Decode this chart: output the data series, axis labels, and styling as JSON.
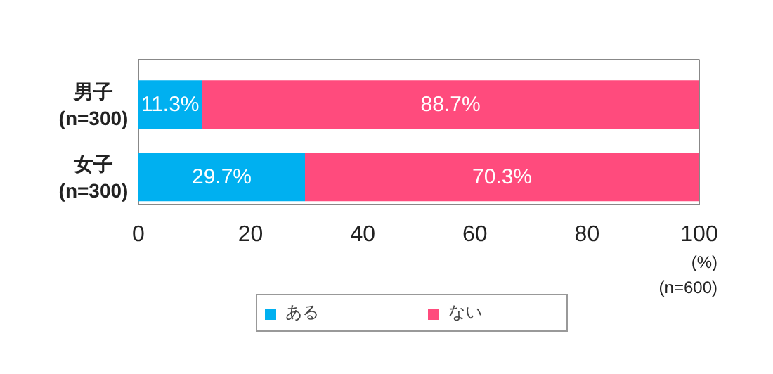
{
  "chart_data": {
    "type": "bar",
    "orientation": "horizontal",
    "stacked": true,
    "categories": [
      "男子\n(n=300)",
      "女子\n(n=300)"
    ],
    "series": [
      {
        "name": "ある",
        "color": "#00b0f0",
        "values": [
          11.3,
          29.7
        ],
        "value_labels": [
          "11.3%",
          "29.7%"
        ]
      },
      {
        "name": "ない",
        "color": "#ff4b7d",
        "values": [
          88.7,
          70.3
        ],
        "value_labels": [
          "88.7%",
          "70.3%"
        ]
      }
    ],
    "xlim": [
      0,
      100
    ],
    "xticks": [
      0,
      20,
      40,
      60,
      80,
      100
    ],
    "annotations": [
      "(%)",
      "(n=600)"
    ],
    "grid": false,
    "legend": "bottom"
  }
}
